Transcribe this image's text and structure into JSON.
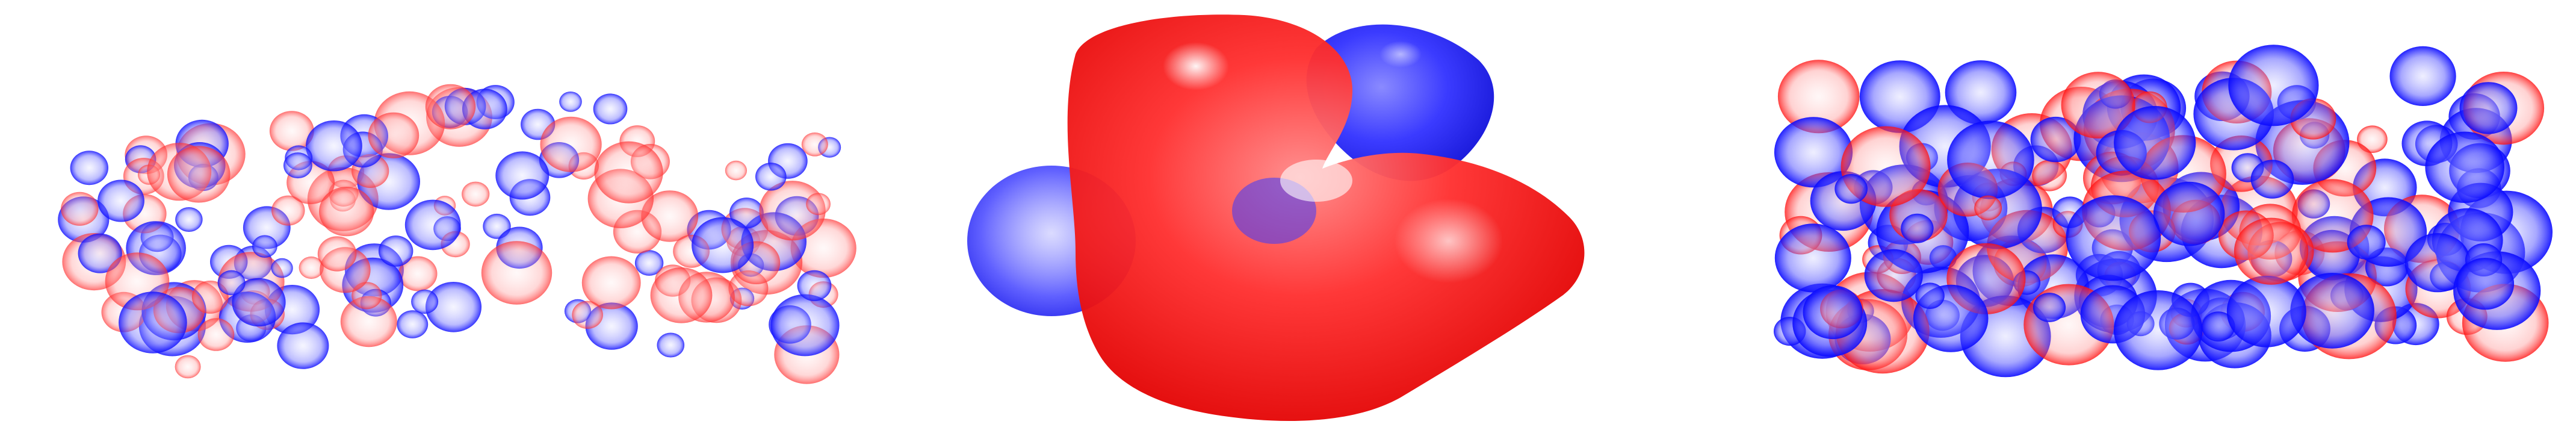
{
  "image": {
    "panels": [
      {
        "id": "left",
        "subject": "scattered-orbital-isosurfaces"
      },
      {
        "id": "center",
        "subject": "single-large-orbital-lobe"
      },
      {
        "id": "right",
        "subject": "dense-orbital-isosurface-cluster"
      }
    ],
    "colors": {
      "positive_lobe": "#ff1a1a",
      "negative_lobe": "#1a1aff",
      "background": "#ffffff"
    }
  }
}
